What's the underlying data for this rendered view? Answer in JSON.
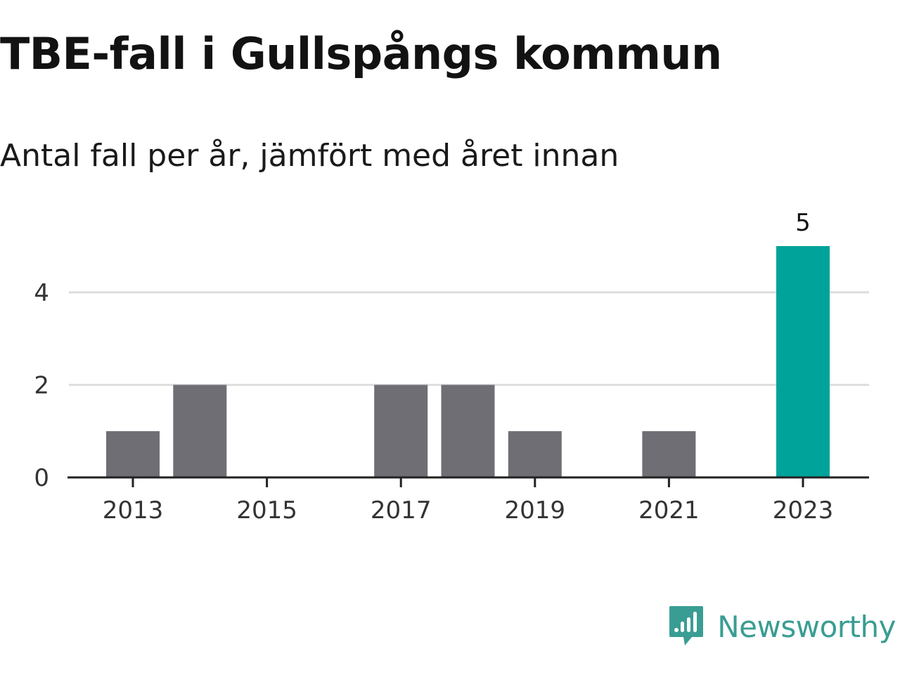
{
  "title": "TBE-fall i Gullspångs kommun",
  "subtitle": "Antal fall per år, jämfört med året innan",
  "brand": {
    "name": "Newsworthy",
    "logo_icon": "bar-chart-speech-bubble-icon",
    "color": "#3a9d93"
  },
  "chart_data": {
    "type": "bar",
    "categories": [
      "2013",
      "2014",
      "2015",
      "2016",
      "2017",
      "2018",
      "2019",
      "2020",
      "2021",
      "2022",
      "2023"
    ],
    "values": [
      1,
      2,
      0,
      0,
      2,
      2,
      1,
      0,
      1,
      0,
      5
    ],
    "highlight_index": 10,
    "highlight_label": "5",
    "x_tick_labels": [
      "2013",
      "2015",
      "2017",
      "2019",
      "2021",
      "2023"
    ],
    "y_ticks": [
      0,
      2,
      4
    ],
    "ylim": [
      0,
      5
    ],
    "grid": true,
    "xlabel": "",
    "ylabel": "",
    "colors": {
      "bar": "#6f6e74",
      "highlight": "#00a39a",
      "grid": "#dddddd",
      "axis": "#222222"
    }
  }
}
